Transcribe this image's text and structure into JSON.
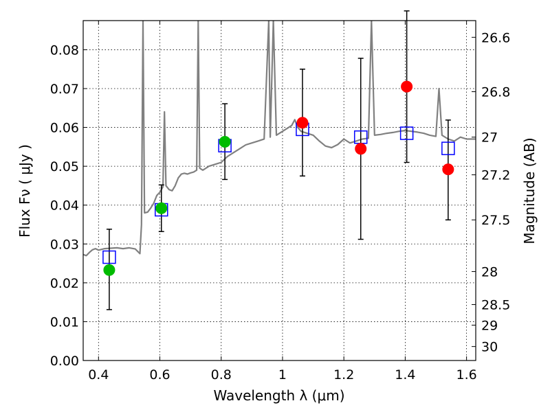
{
  "chart_data": {
    "type": "scatter",
    "xlabel": "Wavelength  λ (μm)",
    "ylabel": "Flux  Fν  ( μJy )",
    "y2label": "Magnitude (AB)",
    "xlim": [
      0.35,
      1.63
    ],
    "ylim": [
      0.0,
      0.0875
    ],
    "grid": true,
    "x_ticks": [
      0.4,
      0.6,
      0.8,
      1.0,
      1.2,
      1.4,
      1.6
    ],
    "x_tick_labels": [
      "0.4",
      "0.6",
      "0.8",
      "1",
      "1.2",
      "1.4",
      "1.6"
    ],
    "y_ticks": [
      0.0,
      0.01,
      0.02,
      0.03,
      0.04,
      0.05,
      0.06,
      0.07,
      0.08
    ],
    "y_tick_labels": [
      "0.00",
      "0.01",
      "0.02",
      "0.03",
      "0.04",
      "0.05",
      "0.06",
      "0.07",
      "0.08"
    ],
    "y2_ticks": [
      {
        "label": "26.6",
        "flux": 0.0832
      },
      {
        "label": "26.8",
        "flux": 0.0692
      },
      {
        "label": "27",
        "flux": 0.0575
      },
      {
        "label": "27.2",
        "flux": 0.0478
      },
      {
        "label": "27.5",
        "flux": 0.0362
      },
      {
        "label": "28",
        "flux": 0.0229
      },
      {
        "label": "28.5",
        "flux": 0.0144
      },
      {
        "label": "29",
        "flux": 0.0091
      },
      {
        "label": "30",
        "flux": 0.0036
      }
    ],
    "colors": {
      "model": "#808080",
      "model_points": "#0000ff",
      "detections": "#00bb00",
      "upper_band": "#ff0000",
      "errorbar": "#000000"
    },
    "model_spectrum": [
      [
        0.35,
        0.0273
      ],
      [
        0.36,
        0.027
      ],
      [
        0.37,
        0.0278
      ],
      [
        0.38,
        0.0285
      ],
      [
        0.39,
        0.0288
      ],
      [
        0.4,
        0.0284
      ],
      [
        0.42,
        0.0288
      ],
      [
        0.44,
        0.0289
      ],
      [
        0.46,
        0.029
      ],
      [
        0.48,
        0.0288
      ],
      [
        0.5,
        0.029
      ],
      [
        0.52,
        0.0287
      ],
      [
        0.535,
        0.0275
      ],
      [
        0.54,
        0.035
      ],
      [
        0.545,
        0.0875
      ],
      [
        0.55,
        0.038
      ],
      [
        0.56,
        0.0382
      ],
      [
        0.57,
        0.0392
      ],
      [
        0.58,
        0.0405
      ],
      [
        0.59,
        0.0425
      ],
      [
        0.6,
        0.0433
      ],
      [
        0.61,
        0.0447
      ],
      [
        0.615,
        0.064
      ],
      [
        0.62,
        0.045
      ],
      [
        0.63,
        0.044
      ],
      [
        0.64,
        0.0437
      ],
      [
        0.65,
        0.045
      ],
      [
        0.66,
        0.047
      ],
      [
        0.67,
        0.048
      ],
      [
        0.68,
        0.0482
      ],
      [
        0.69,
        0.048
      ],
      [
        0.7,
        0.0483
      ],
      [
        0.71,
        0.0485
      ],
      [
        0.72,
        0.049
      ],
      [
        0.725,
        0.0875
      ],
      [
        0.73,
        0.0495
      ],
      [
        0.74,
        0.049
      ],
      [
        0.75,
        0.0495
      ],
      [
        0.76,
        0.05
      ],
      [
        0.78,
        0.0505
      ],
      [
        0.8,
        0.051
      ],
      [
        0.82,
        0.0525
      ],
      [
        0.84,
        0.0535
      ],
      [
        0.86,
        0.0545
      ],
      [
        0.88,
        0.0555
      ],
      [
        0.9,
        0.056
      ],
      [
        0.92,
        0.0565
      ],
      [
        0.94,
        0.057
      ],
      [
        0.955,
        0.0875
      ],
      [
        0.96,
        0.0575
      ],
      [
        0.97,
        0.0875
      ],
      [
        0.98,
        0.058
      ],
      [
        1.0,
        0.059
      ],
      [
        1.02,
        0.06
      ],
      [
        1.03,
        0.0605
      ],
      [
        1.04,
        0.062
      ],
      [
        1.05,
        0.06
      ],
      [
        1.06,
        0.059
      ],
      [
        1.08,
        0.0585
      ],
      [
        1.1,
        0.058
      ],
      [
        1.12,
        0.0565
      ],
      [
        1.14,
        0.0552
      ],
      [
        1.16,
        0.0548
      ],
      [
        1.18,
        0.0556
      ],
      [
        1.2,
        0.057
      ],
      [
        1.22,
        0.056
      ],
      [
        1.24,
        0.0565
      ],
      [
        1.26,
        0.057
      ],
      [
        1.28,
        0.0572
      ],
      [
        1.29,
        0.0875
      ],
      [
        1.3,
        0.058
      ],
      [
        1.32,
        0.0582
      ],
      [
        1.34,
        0.0585
      ],
      [
        1.36,
        0.0587
      ],
      [
        1.38,
        0.059
      ],
      [
        1.4,
        0.0592
      ],
      [
        1.42,
        0.059
      ],
      [
        1.44,
        0.0588
      ],
      [
        1.46,
        0.0585
      ],
      [
        1.48,
        0.058
      ],
      [
        1.5,
        0.0577
      ],
      [
        1.51,
        0.07
      ],
      [
        1.52,
        0.058
      ],
      [
        1.54,
        0.057
      ],
      [
        1.56,
        0.0565
      ],
      [
        1.58,
        0.0575
      ],
      [
        1.6,
        0.057
      ],
      [
        1.63,
        0.057
      ]
    ],
    "model_points": [
      {
        "x": 0.435,
        "y": 0.0266
      },
      {
        "x": 0.605,
        "y": 0.0388
      },
      {
        "x": 0.812,
        "y": 0.0553
      },
      {
        "x": 1.065,
        "y": 0.0595
      },
      {
        "x": 1.255,
        "y": 0.0575
      },
      {
        "x": 1.405,
        "y": 0.0585
      },
      {
        "x": 1.54,
        "y": 0.0546
      }
    ],
    "detections": [
      {
        "x": 0.435,
        "y": 0.0233,
        "yerr_low": 0.0102,
        "yerr_high": 0.0105
      },
      {
        "x": 0.605,
        "y": 0.0392,
        "yerr_low": 0.006,
        "yerr_high": 0.006
      },
      {
        "x": 0.812,
        "y": 0.0563,
        "yerr_low": 0.0097,
        "yerr_high": 0.0098
      }
    ],
    "upper_band": [
      {
        "x": 1.065,
        "y": 0.0612,
        "yerr_low": 0.0137,
        "yerr_high": 0.0138
      },
      {
        "x": 1.255,
        "y": 0.0545,
        "yerr_low": 0.0233,
        "yerr_high": 0.0233
      },
      {
        "x": 1.405,
        "y": 0.0705,
        "yerr_low": 0.0195,
        "yerr_high": 0.0195
      },
      {
        "x": 1.54,
        "y": 0.0492,
        "yerr_low": 0.013,
        "yerr_high": 0.0127
      }
    ]
  }
}
